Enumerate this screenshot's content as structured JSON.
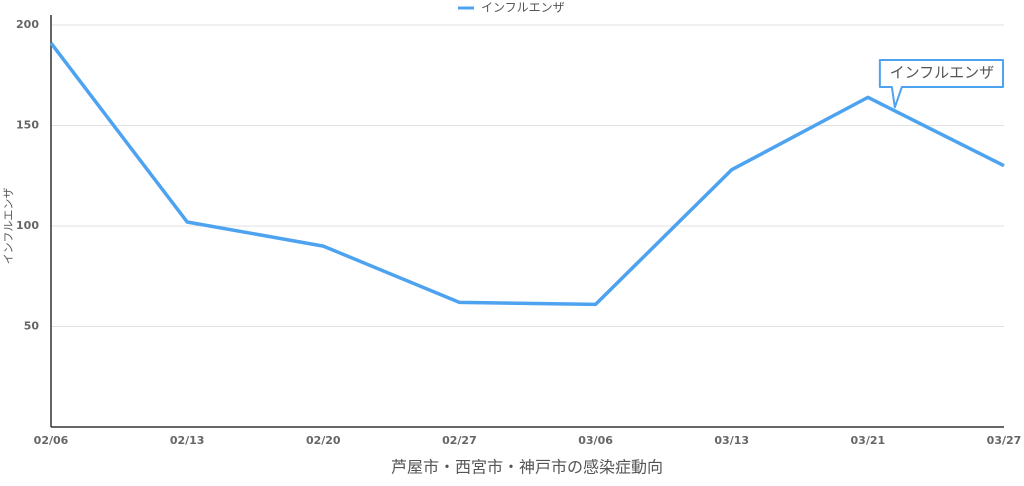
{
  "chart_data": {
    "type": "line",
    "x_label": "芦屋市・西宮市・神戸市の感染症動向",
    "y_label": "インフルエンザ",
    "categories": [
      "02/06",
      "02/13",
      "02/20",
      "02/27",
      "03/06",
      "03/13",
      "03/21",
      "03/27"
    ],
    "series": [
      {
        "name": "インフルエンザ",
        "color": "#4da3f0",
        "values": [
          191,
          102,
          90,
          62,
          61,
          128,
          164,
          130
        ]
      }
    ],
    "ylim": [
      0,
      200
    ],
    "yticks": [
      50,
      100,
      150,
      200
    ],
    "grid": true,
    "legend": "top"
  }
}
